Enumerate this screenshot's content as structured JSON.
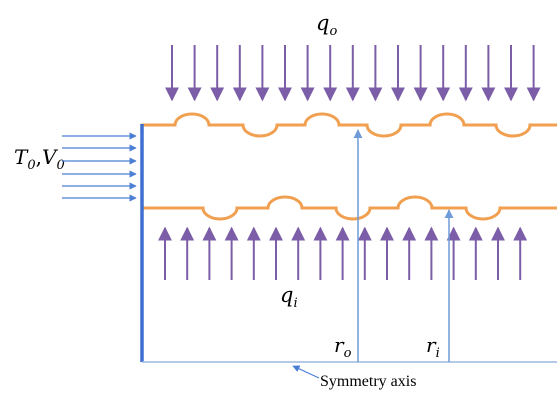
{
  "labels": {
    "q_outer": {
      "base": "q",
      "sub": "o"
    },
    "q_inner": {
      "base": "q",
      "sub": "i"
    },
    "inlet": {
      "t": "T",
      "t_sub": "0",
      "sep": ",",
      "v": "V",
      "v_sub": "0"
    },
    "r_outer": {
      "base": "r",
      "sub": "o"
    },
    "r_inner": {
      "base": "r",
      "sub": "i"
    },
    "symmetry_axis": "Symmetry axis"
  },
  "colors": {
    "heat_flux_arrow": "#7b5ea7",
    "wall_profile": "#f0a050",
    "inlet_arrow": "#4a7fd4",
    "inlet_wall": "#3f6fcf",
    "radius_arrow": "#6f9bd8",
    "axis_line": "#9ab8e0"
  }
}
